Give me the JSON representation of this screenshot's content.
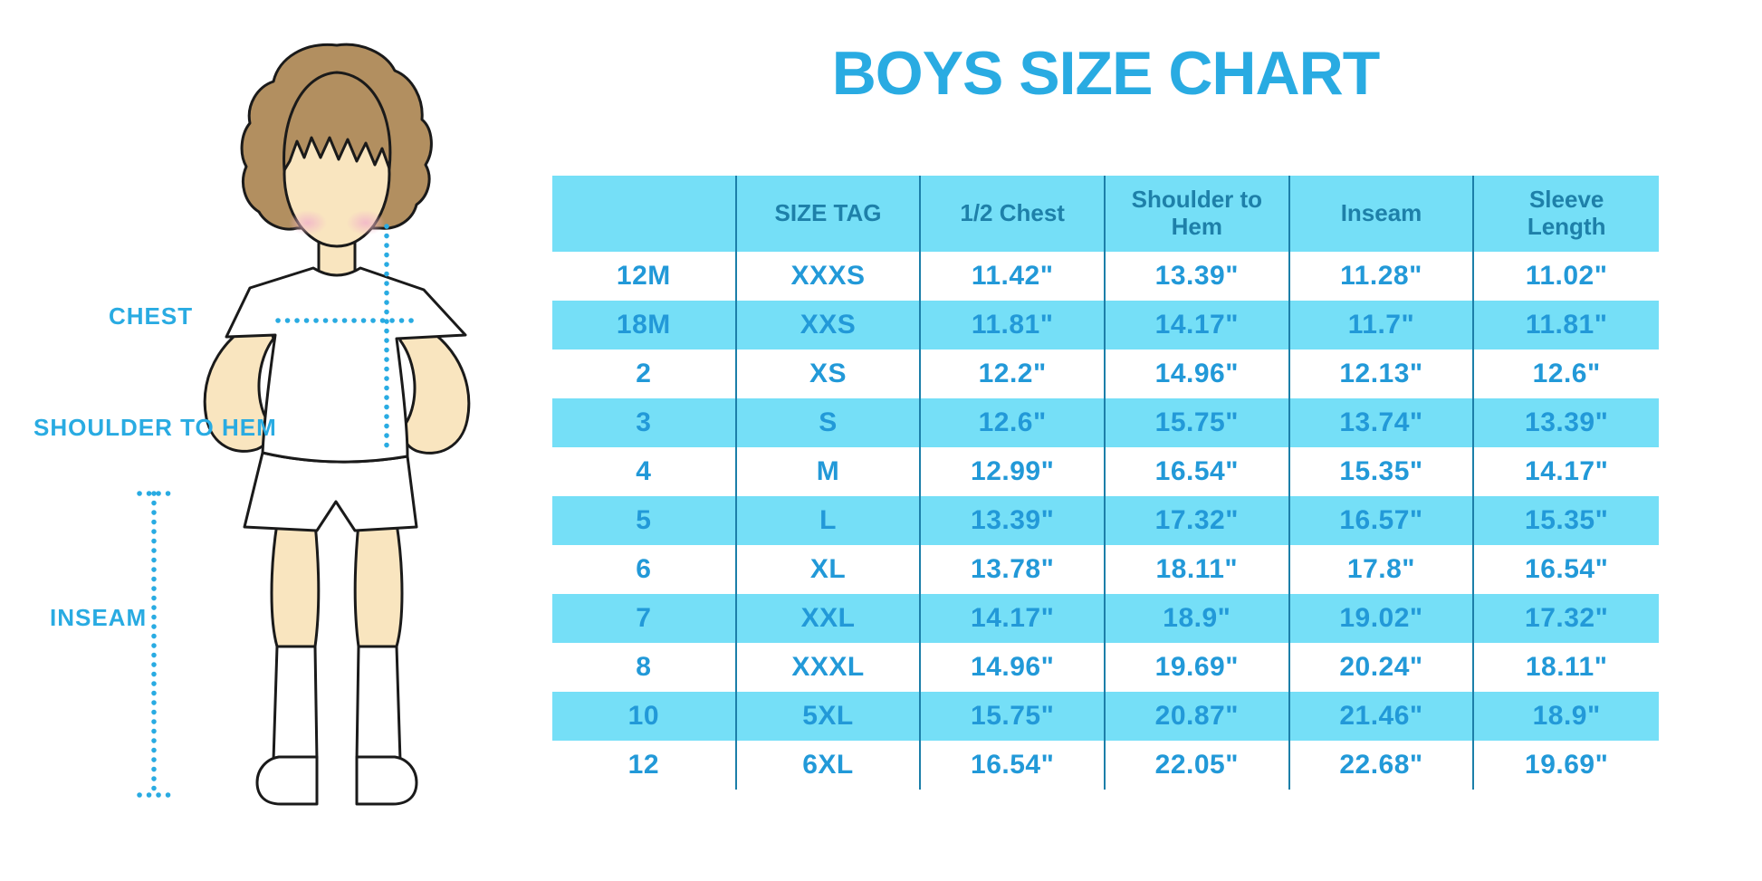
{
  "figure": {
    "labels": {
      "chest": "CHEST",
      "shoulder_to_hem": "SHOULDER TO HEM",
      "inseam": "INSEAM"
    }
  },
  "colors": {
    "accent": "#29ABE2",
    "stripe": "#75DFF7",
    "header_text": "#1E80A9",
    "data_text": "#2299D8",
    "grid_line": "#1C7FA9",
    "skin": "#F9E5BF",
    "hair": "#B28F60",
    "blush": "#F2B9C8",
    "outline": "#1A1A1A"
  },
  "chart_data": {
    "type": "table",
    "title": "BOYS SIZE CHART",
    "columns": [
      "",
      "SIZE TAG",
      "1/2 Chest",
      "Shoulder to Hem",
      "Inseam",
      "Sleeve Length"
    ],
    "rows": [
      [
        "12M",
        "XXXS",
        "11.42\"",
        "13.39\"",
        "11.28\"",
        "11.02\""
      ],
      [
        "18M",
        "XXS",
        "11.81\"",
        "14.17\"",
        "11.7\"",
        "11.81\""
      ],
      [
        "2",
        "XS",
        "12.2\"",
        "14.96\"",
        "12.13\"",
        "12.6\""
      ],
      [
        "3",
        "S",
        "12.6\"",
        "15.75\"",
        "13.74\"",
        "13.39\""
      ],
      [
        "4",
        "M",
        "12.99\"",
        "16.54\"",
        "15.35\"",
        "14.17\""
      ],
      [
        "5",
        "L",
        "13.39\"",
        "17.32\"",
        "16.57\"",
        "15.35\""
      ],
      [
        "6",
        "XL",
        "13.78\"",
        "18.11\"",
        "17.8\"",
        "16.54\""
      ],
      [
        "7",
        "XXL",
        "14.17\"",
        "18.9\"",
        "19.02\"",
        "17.32\""
      ],
      [
        "8",
        "XXXL",
        "14.96\"",
        "19.69\"",
        "20.24\"",
        "18.11\""
      ],
      [
        "10",
        "5XL",
        "15.75\"",
        "20.87\"",
        "21.46\"",
        "18.9\""
      ],
      [
        "12",
        "6XL",
        "16.54\"",
        "22.05\"",
        "22.68\"",
        "19.69\""
      ]
    ],
    "layout": {
      "striped_rows": "alternating, starting white",
      "grid": "vertical-separators-only",
      "legend": "none"
    }
  }
}
